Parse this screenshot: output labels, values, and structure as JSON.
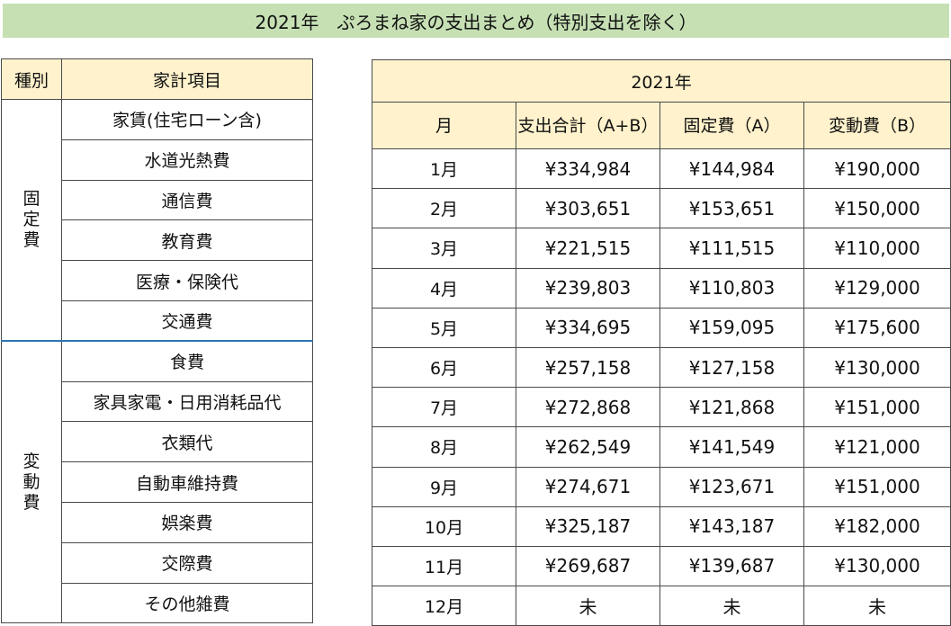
{
  "title": "2021年　ぷろまね家の支出まとめ（特別支出を除く）",
  "left": {
    "header_kind": "種別",
    "header_item": "家計項目",
    "fixed": {
      "kind": "固定費",
      "items": [
        "家賃(住宅ローン含)",
        "水道光熱費",
        "通信費",
        "教育費",
        "医療・保険代",
        "交通費"
      ]
    },
    "variable": {
      "kind": "変動費",
      "items": [
        "食費",
        "家具家電・日用消耗品代",
        "衣類代",
        "自動車維持費",
        "娯楽費",
        "交際費",
        "その他雑費"
      ]
    }
  },
  "right": {
    "year": "2021年",
    "col_month": "月",
    "col_total": "支出合計（A+B）",
    "col_fixed": "固定費（A）",
    "col_variable": "変動費（B）",
    "rows": [
      {
        "month": "1月",
        "total": "¥334,984",
        "fixed": "¥144,984",
        "variable": "¥190,000"
      },
      {
        "month": "2月",
        "total": "¥303,651",
        "fixed": "¥153,651",
        "variable": "¥150,000"
      },
      {
        "month": "3月",
        "total": "¥221,515",
        "fixed": "¥111,515",
        "variable": "¥110,000"
      },
      {
        "month": "4月",
        "total": "¥239,803",
        "fixed": "¥110,803",
        "variable": "¥129,000"
      },
      {
        "month": "5月",
        "total": "¥334,695",
        "fixed": "¥159,095",
        "variable": "¥175,600"
      },
      {
        "month": "6月",
        "total": "¥257,158",
        "fixed": "¥127,158",
        "variable": "¥130,000"
      },
      {
        "month": "7月",
        "total": "¥272,868",
        "fixed": "¥121,868",
        "variable": "¥151,000"
      },
      {
        "month": "8月",
        "total": "¥262,549",
        "fixed": "¥141,549",
        "variable": "¥121,000"
      },
      {
        "month": "9月",
        "total": "¥274,671",
        "fixed": "¥123,671",
        "variable": "¥151,000"
      },
      {
        "month": "10月",
        "total": "¥325,187",
        "fixed": "¥143,187",
        "variable": "¥182,000"
      },
      {
        "month": "11月",
        "total": "¥269,687",
        "fixed": "¥139,687",
        "variable": "¥130,000"
      },
      {
        "month": "12月",
        "total": "未",
        "fixed": "未",
        "variable": "未"
      }
    ]
  }
}
